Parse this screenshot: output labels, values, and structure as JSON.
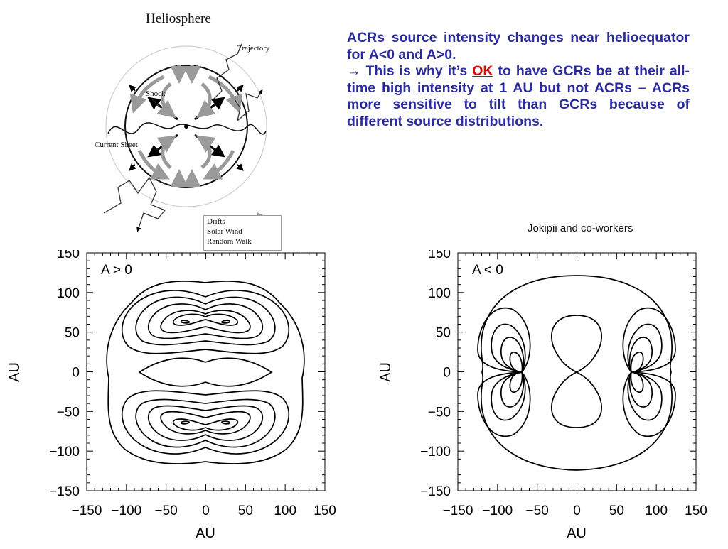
{
  "heliosphere": {
    "title": "Heliosphere",
    "labels": {
      "trajectory": "Trajectory",
      "shock": "Shock",
      "current_sheet": "Current Sheet"
    },
    "legend": {
      "drifts": "Drifts",
      "solar_wind": "Solar Wind",
      "random_walk": "Random Walk"
    }
  },
  "text": {
    "para1": "ACRs source intensity changes near helioequator for A<0 and A>0.",
    "arrow": "→",
    "para2_before": "This is why it’s",
    "para2_ok": "OK",
    "para2_after": "to have GCRs be at their all-time high intensity at 1 AU but not ACRs – ACRs more sensitive to tilt than GCRs because of different source distributions."
  },
  "credit": "Jokipii and co-workers",
  "colors": {
    "text_blue": "#2b2b9e",
    "ok_red": "#e00000",
    "drift_gray": "#9a9a9a",
    "line_black": "#000000"
  },
  "chart_data": [
    {
      "type": "contour",
      "title": "A > 0",
      "xlabel": "AU",
      "ylabel": "AU",
      "xlim": [
        -150,
        150
      ],
      "ylim": [
        -150,
        150
      ],
      "xticks": [
        "−150",
        "−100",
        "−50",
        "0",
        "50",
        "100",
        "150"
      ],
      "yticks": [
        "150",
        "100",
        "50",
        "0",
        "−50",
        "−100",
        "−150"
      ]
    },
    {
      "type": "contour",
      "title": "A < 0",
      "xlabel": "AU",
      "ylabel": "AU",
      "xlim": [
        -150,
        150
      ],
      "ylim": [
        -150,
        150
      ],
      "xticks": [
        "−150",
        "−100",
        "−50",
        "0",
        "50",
        "100",
        "150"
      ],
      "yticks": [
        "150",
        "100",
        "50",
        "0",
        "−50",
        "−100",
        "−150"
      ]
    }
  ]
}
